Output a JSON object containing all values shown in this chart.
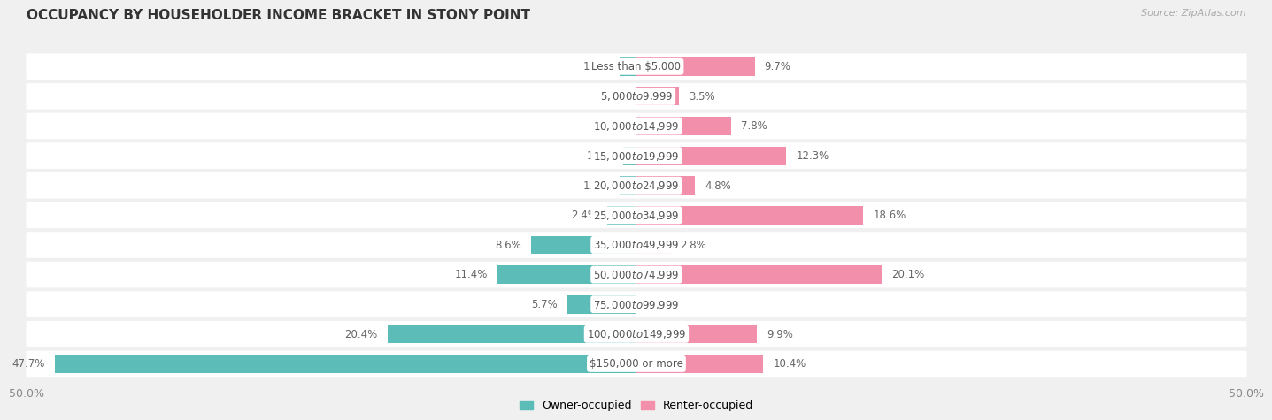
{
  "title": "OCCUPANCY BY HOUSEHOLDER INCOME BRACKET IN STONY POINT",
  "source": "Source: ZipAtlas.com",
  "categories": [
    "Less than $5,000",
    "$5,000 to $9,999",
    "$10,000 to $14,999",
    "$15,000 to $19,999",
    "$20,000 to $24,999",
    "$25,000 to $34,999",
    "$35,000 to $49,999",
    "$50,000 to $74,999",
    "$75,000 to $99,999",
    "$100,000 to $149,999",
    "$150,000 or more"
  ],
  "owner_values": [
    1.4,
    0.0,
    0.0,
    1.1,
    1.4,
    2.4,
    8.6,
    11.4,
    5.7,
    20.4,
    47.7
  ],
  "renter_values": [
    9.7,
    3.5,
    7.8,
    12.3,
    4.8,
    18.6,
    2.8,
    20.1,
    0.0,
    9.9,
    10.4
  ],
  "owner_color": "#5bbcb8",
  "renter_color": "#f28faa",
  "owner_label": "Owner-occupied",
  "renter_label": "Renter-occupied",
  "axis_min": -50.0,
  "axis_max": 50.0,
  "background_color": "#f0f0f0",
  "bar_background_color": "#ffffff",
  "title_fontsize": 11,
  "label_fontsize": 8.5,
  "tick_fontsize": 9,
  "source_fontsize": 8,
  "value_fontsize": 8.5
}
